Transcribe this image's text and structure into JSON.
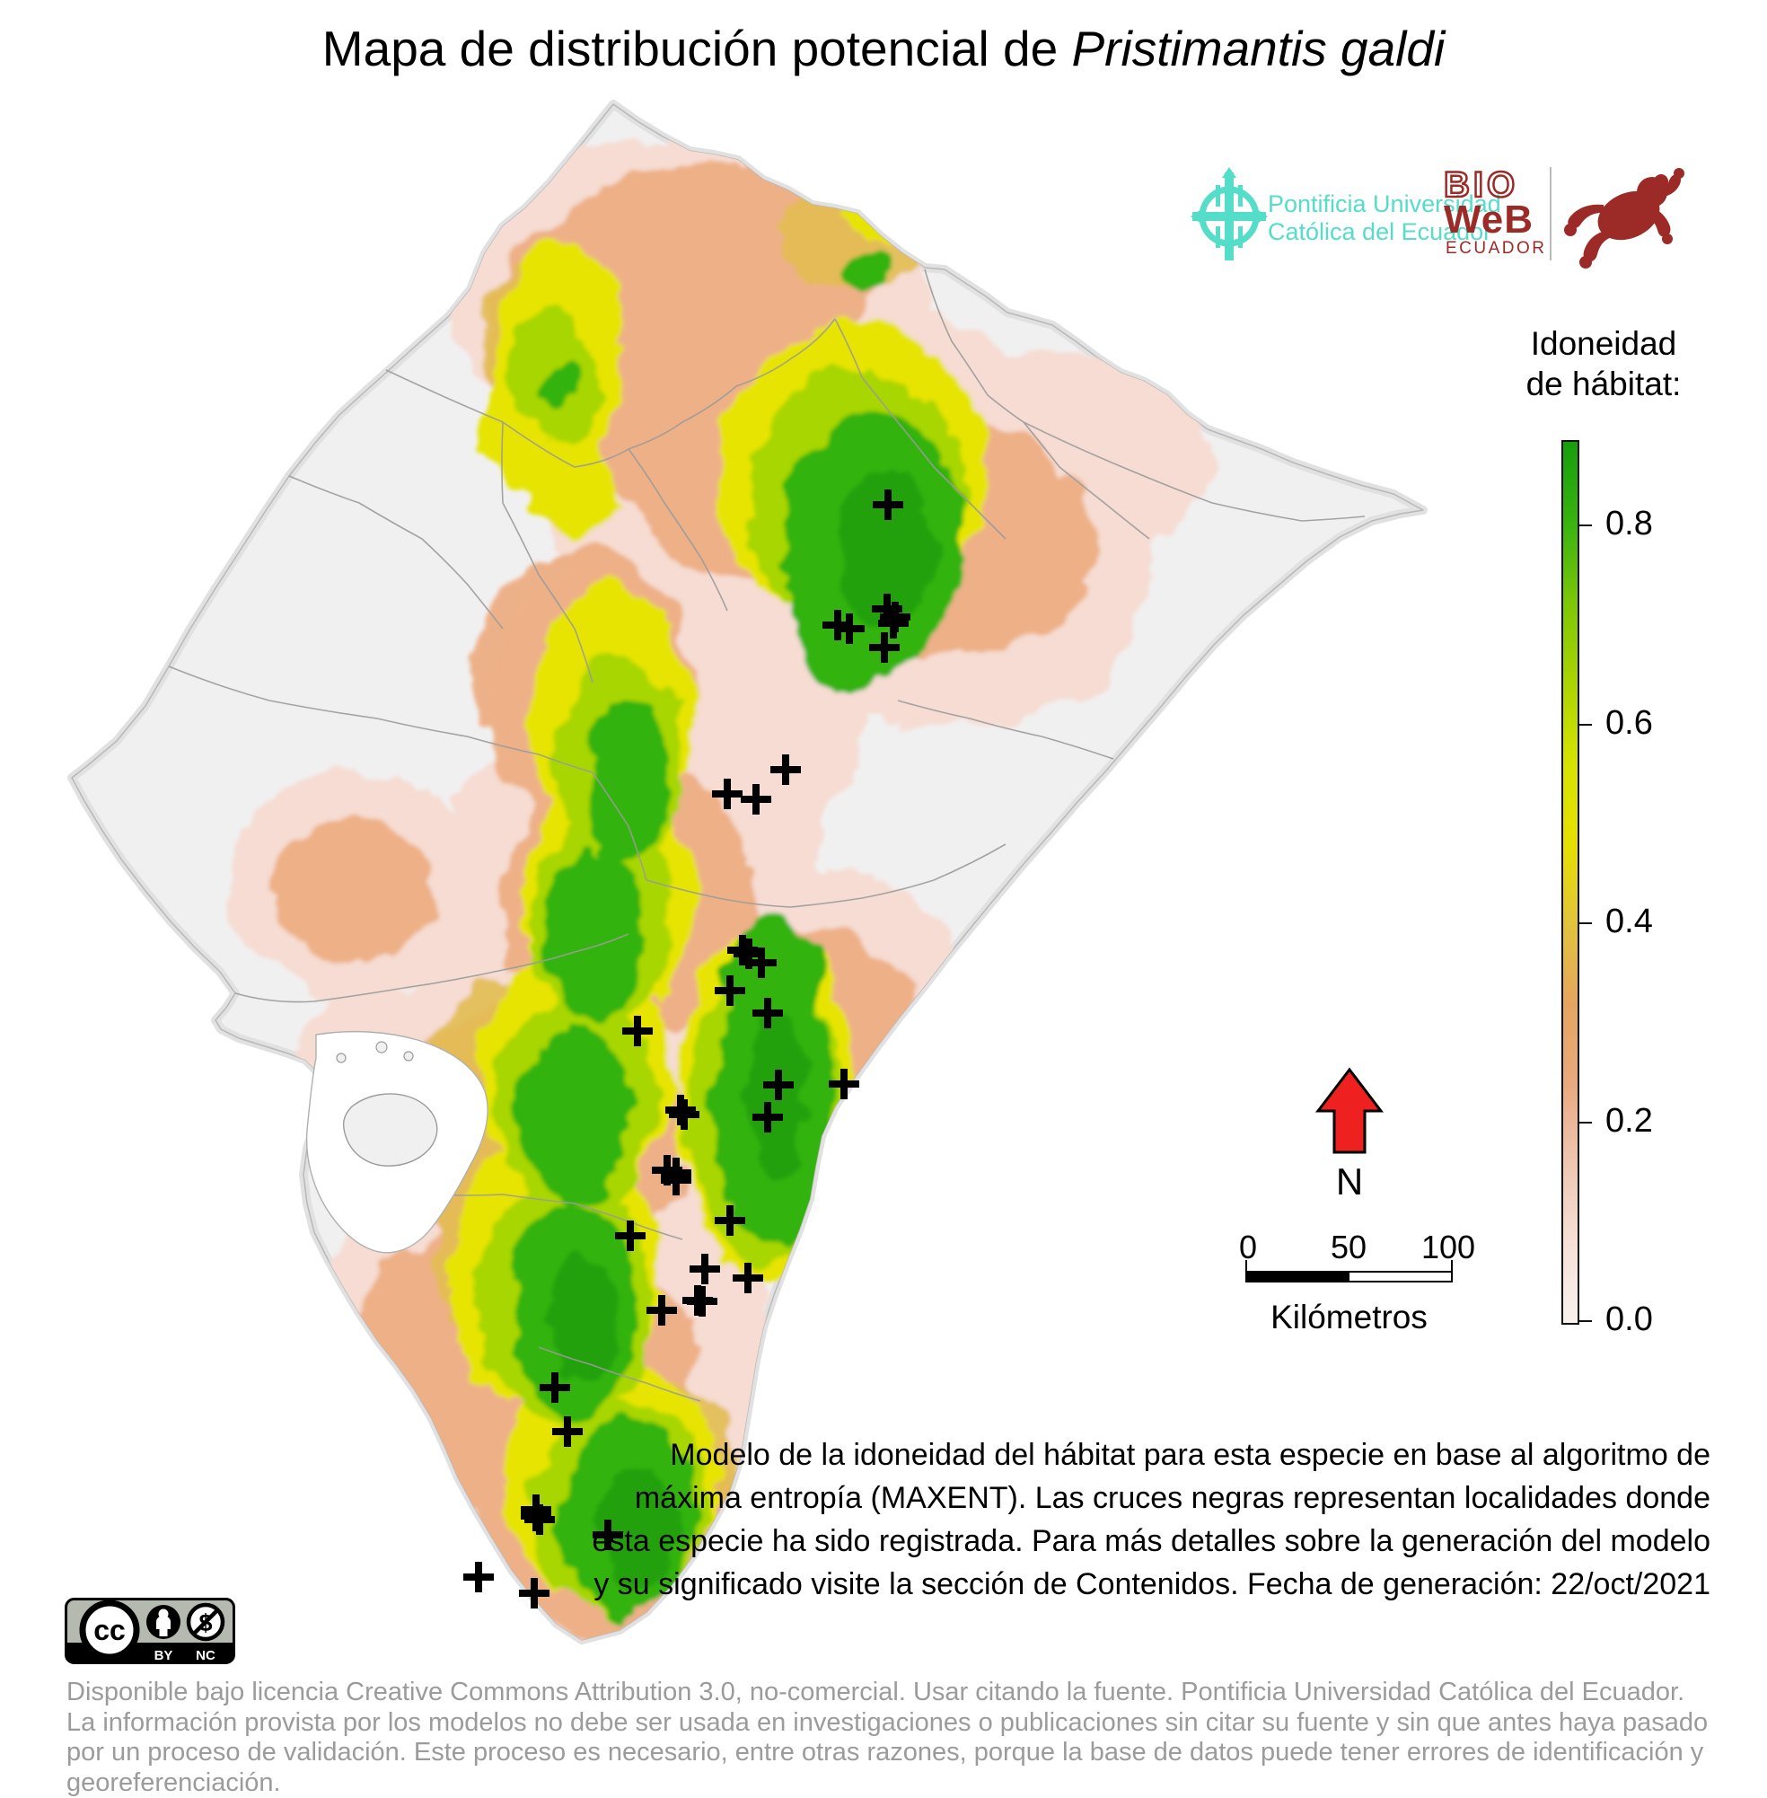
{
  "title": {
    "prefix": "Mapa de distribución potencial de ",
    "species": "Pristimantis galdi"
  },
  "header_logos": {
    "puce": {
      "name_line1": "Pontificia Universidad",
      "name_line2": "Católica del Ecuador",
      "color": "#54ddc9"
    },
    "bioweb": {
      "line1": "BIO",
      "line2": "WeB",
      "line3": "ECUADOR",
      "color": "#9c2a26"
    }
  },
  "legend": {
    "title_line1": "Idoneidad",
    "title_line2": "de hábitat:",
    "tick_labels": [
      "0.8",
      "0.6",
      "0.4",
      "0.2",
      "0.0"
    ],
    "tick_values": [
      0.8,
      0.6,
      0.4,
      0.2,
      0.0
    ],
    "bar_max_value": 0.886,
    "gradient_stops": [
      "#169e0c",
      "#38b30f",
      "#7cc707",
      "#abd400",
      "#d6e300",
      "#e6e000",
      "#e2c43a",
      "#e5a55f",
      "#e9a97e",
      "#efc6b1",
      "#f5e0d7",
      "#f9f1ee"
    ]
  },
  "north_arrow": {
    "label": "N",
    "color": "#ee2020"
  },
  "scale_bar": {
    "tick_labels": [
      "0",
      "50",
      "100"
    ],
    "unit_label": "Kilómetros"
  },
  "description_lines": [
    "Modelo de la idoneidad del hábitat para esta especie en base al algoritmo de",
    "máxima entropía (MAXENT). Las cruces negras representan localidades donde",
    "esta especie ha sido registrada. Para más detalles sobre la generación del modelo",
    "y su significado visite la sección de Contenidos. Fecha de generación: 22/oct/2021"
  ],
  "cc_badge": {
    "cc": "cc",
    "by": "BY",
    "nc": "NC"
  },
  "footer_lines": [
    "Disponible bajo licencia Creative Commons Attribution 3.0, no-comercial. Usar citando la fuente. Pontificia Universidad Católica del Ecuador.",
    "La información provista por los modelos no debe ser usada en investigaciones o publicaciones sin citar su fuente y sin que antes haya pasado",
    "por un proceso de validación. Este proceso es necesario, entre otras razones, porque la base de datos puede tener errores de identificación y georeferenciación."
  ],
  "map": {
    "land_color": "#f1f0f1",
    "halo_color": "#e2e1e2",
    "boundary_color": "#9b9b9b",
    "suitability_colors": {
      "0.0-0.1": "#f9f1ee",
      "0.1-0.2": "#f6dcd2",
      "0.2-0.3": "#eeae83",
      "0.3-0.4": "#e3bd52",
      "0.4-0.5": "#e6e400",
      "0.5-0.65": "#a8d600",
      "0.65-0.8": "#33b30f",
      "0.8+": "#1d9e07"
    },
    "cross_color": "#000000",
    "crosses": [
      [
        989,
        562
      ],
      [
        933,
        696
      ],
      [
        946,
        700
      ],
      [
        988,
        678
      ],
      [
        997,
        687
      ],
      [
        995,
        694
      ],
      [
        985,
        721
      ],
      [
        875,
        857
      ],
      [
        810,
        884
      ],
      [
        842,
        890
      ],
      [
        827,
        1058
      ],
      [
        834,
        1062
      ],
      [
        848,
        1072
      ],
      [
        813,
        1103
      ],
      [
        855,
        1128
      ],
      [
        710,
        1148
      ],
      [
        867,
        1208
      ],
      [
        940,
        1207
      ],
      [
        758,
        1236
      ],
      [
        762,
        1241
      ],
      [
        855,
        1244
      ],
      [
        743,
        1303
      ],
      [
        753,
        1306
      ],
      [
        753,
        1314
      ],
      [
        813,
        1359
      ],
      [
        702,
        1376
      ],
      [
        785,
        1413
      ],
      [
        833,
        1423
      ],
      [
        777,
        1448
      ],
      [
        782,
        1449
      ],
      [
        737,
        1459
      ],
      [
        618,
        1545
      ],
      [
        632,
        1594
      ],
      [
        597,
        1681
      ],
      [
        597,
        1688
      ],
      [
        601,
        1692
      ],
      [
        677,
        1709
      ],
      [
        533,
        1756
      ],
      [
        595,
        1774
      ]
    ]
  }
}
